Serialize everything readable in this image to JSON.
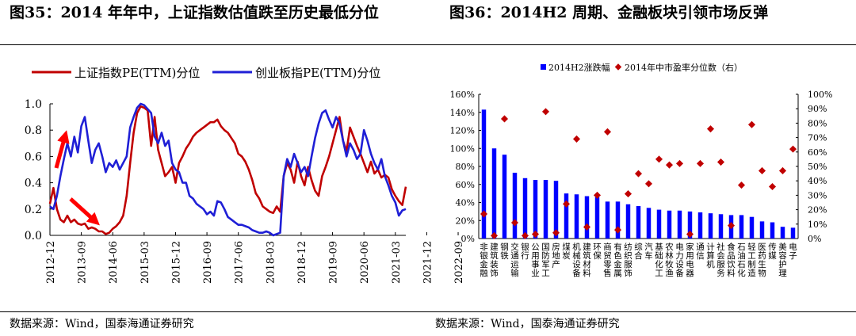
{
  "left_panel": {
    "title": "图35：2014 年年中，上证指数估值跌至历史最低分位",
    "source": "数据来源：Wind，国泰海通证券研究"
  },
  "right_panel": {
    "title": "图36：2014H2 周期、金融板块引领市场反弹",
    "source": "数据来源：Wind，国泰海通证券研究"
  },
  "colors": {
    "sse": "#c00000",
    "chinext": "#1f1fd6",
    "bar": "#0000ff",
    "dot": "#c00000",
    "arrow": "#ff0000"
  },
  "chart_data": [
    {
      "type": "line",
      "title": "",
      "legend_position": "top",
      "x_tick_labels": [
        "2012-12",
        "2013-09",
        "2014-06",
        "2015-03",
        "2015-12",
        "2016-09",
        "2017-06",
        "2018-03",
        "2018-12",
        "2019-09",
        "2020-06",
        "2021-03",
        "2021-12",
        "2022-09"
      ],
      "x_range": [
        "2012-12",
        "2022-11"
      ],
      "y_tick_labels": [
        "0.0",
        "0.2",
        "0.4",
        "0.6",
        "0.8",
        "1.0"
      ],
      "ylim": [
        0,
        1
      ],
      "series": [
        {
          "name": "上证指数PE(TTM)分位",
          "color_key": "sse",
          "points": [
            [
              0,
              0.24
            ],
            [
              1,
              0.36
            ],
            [
              2,
              0.2
            ],
            [
              3,
              0.12
            ],
            [
              4,
              0.1
            ],
            [
              5,
              0.15
            ],
            [
              6,
              0.1
            ],
            [
              7,
              0.12
            ],
            [
              8,
              0.09
            ],
            [
              9,
              0.08
            ],
            [
              10,
              0.09
            ],
            [
              11,
              0.05
            ],
            [
              12,
              0.06
            ],
            [
              13,
              0.05
            ],
            [
              14,
              0.03
            ],
            [
              15,
              0.03
            ],
            [
              16,
              0.01
            ],
            [
              17,
              0.02
            ],
            [
              18,
              0.05
            ],
            [
              19,
              0.07
            ],
            [
              20,
              0.1
            ],
            [
              21,
              0.15
            ],
            [
              22,
              0.3
            ],
            [
              23,
              0.55
            ],
            [
              24,
              0.78
            ],
            [
              25,
              0.93
            ],
            [
              26,
              0.98
            ],
            [
              27,
              0.97
            ],
            [
              28,
              0.95
            ],
            [
              29,
              0.68
            ],
            [
              30,
              0.9
            ],
            [
              31,
              0.65
            ],
            [
              32,
              0.55
            ],
            [
              33,
              0.45
            ],
            [
              34,
              0.48
            ],
            [
              35,
              0.52
            ],
            [
              36,
              0.4
            ],
            [
              37,
              0.55
            ],
            [
              38,
              0.6
            ],
            [
              39,
              0.66
            ],
            [
              40,
              0.7
            ],
            [
              41,
              0.75
            ],
            [
              42,
              0.78
            ],
            [
              43,
              0.8
            ],
            [
              44,
              0.82
            ],
            [
              45,
              0.84
            ],
            [
              46,
              0.86
            ],
            [
              47,
              0.86
            ],
            [
              48,
              0.88
            ],
            [
              49,
              0.83
            ],
            [
              50,
              0.8
            ],
            [
              51,
              0.78
            ],
            [
              52,
              0.74
            ],
            [
              53,
              0.7
            ],
            [
              54,
              0.62
            ],
            [
              55,
              0.6
            ],
            [
              56,
              0.56
            ],
            [
              57,
              0.5
            ],
            [
              58,
              0.42
            ],
            [
              59,
              0.32
            ],
            [
              60,
              0.28
            ],
            [
              61,
              0.22
            ],
            [
              62,
              0.2
            ],
            [
              63,
              0.18
            ],
            [
              64,
              0.17
            ],
            [
              65,
              0.22
            ],
            [
              66,
              0.18
            ],
            [
              67,
              0.45
            ],
            [
              68,
              0.55
            ],
            [
              69,
              0.5
            ],
            [
              70,
              0.4
            ],
            [
              71,
              0.56
            ],
            [
              72,
              0.45
            ],
            [
              73,
              0.38
            ],
            [
              74,
              0.52
            ],
            [
              75,
              0.42
            ],
            [
              76,
              0.34
            ],
            [
              77,
              0.3
            ],
            [
              78,
              0.45
            ],
            [
              79,
              0.52
            ],
            [
              80,
              0.6
            ],
            [
              81,
              0.7
            ],
            [
              82,
              0.8
            ],
            [
              83,
              0.9
            ],
            [
              84,
              0.72
            ],
            [
              85,
              0.64
            ],
            [
              86,
              0.82
            ],
            [
              87,
              0.75
            ],
            [
              88,
              0.68
            ],
            [
              89,
              0.62
            ],
            [
              90,
              0.55
            ],
            [
              91,
              0.48
            ],
            [
              92,
              0.56
            ],
            [
              93,
              0.47
            ],
            [
              94,
              0.5
            ],
            [
              95,
              0.44
            ],
            [
              96,
              0.46
            ],
            [
              97,
              0.44
            ],
            [
              98,
              0.35
            ],
            [
              99,
              0.3
            ],
            [
              100,
              0.26
            ],
            [
              101,
              0.23
            ],
            [
              102,
              0.37
            ]
          ]
        },
        {
          "name": "创业板指PE(TTM)分位",
          "color_key": "chinext",
          "points": [
            [
              0,
              0.22
            ],
            [
              1,
              0.2
            ],
            [
              2,
              0.3
            ],
            [
              3,
              0.45
            ],
            [
              4,
              0.58
            ],
            [
              5,
              0.7
            ],
            [
              6,
              0.6
            ],
            [
              7,
              0.75
            ],
            [
              8,
              0.63
            ],
            [
              9,
              0.83
            ],
            [
              10,
              0.9
            ],
            [
              11,
              0.72
            ],
            [
              12,
              0.55
            ],
            [
              13,
              0.65
            ],
            [
              14,
              0.7
            ],
            [
              15,
              0.6
            ],
            [
              16,
              0.48
            ],
            [
              17,
              0.55
            ],
            [
              18,
              0.52
            ],
            [
              19,
              0.57
            ],
            [
              20,
              0.5
            ],
            [
              21,
              0.55
            ],
            [
              22,
              0.6
            ],
            [
              23,
              0.82
            ],
            [
              24,
              0.9
            ],
            [
              25,
              0.97
            ],
            [
              26,
              1.0
            ],
            [
              27,
              0.99
            ],
            [
              28,
              0.96
            ],
            [
              29,
              0.93
            ],
            [
              30,
              0.75
            ],
            [
              31,
              0.7
            ],
            [
              32,
              0.78
            ],
            [
              33,
              0.68
            ],
            [
              34,
              0.72
            ],
            [
              35,
              0.55
            ],
            [
              36,
              0.5
            ],
            [
              37,
              0.48
            ],
            [
              38,
              0.4
            ],
            [
              39,
              0.4
            ],
            [
              40,
              0.3
            ],
            [
              41,
              0.28
            ],
            [
              42,
              0.24
            ],
            [
              43,
              0.22
            ],
            [
              44,
              0.2
            ],
            [
              45,
              0.16
            ],
            [
              46,
              0.18
            ],
            [
              47,
              0.15
            ],
            [
              48,
              0.26
            ],
            [
              49,
              0.25
            ],
            [
              50,
              0.2
            ],
            [
              51,
              0.14
            ],
            [
              52,
              0.12
            ],
            [
              53,
              0.1
            ],
            [
              54,
              0.08
            ],
            [
              55,
              0.08
            ],
            [
              56,
              0.07
            ],
            [
              57,
              0.06
            ],
            [
              58,
              0.04
            ],
            [
              59,
              0.03
            ],
            [
              60,
              0.02
            ],
            [
              61,
              0.02
            ],
            [
              62,
              0.03
            ],
            [
              63,
              0.02
            ],
            [
              64,
              0.0
            ],
            [
              65,
              0.01
            ],
            [
              66,
              0.02
            ],
            [
              67,
              0.45
            ],
            [
              68,
              0.58
            ],
            [
              69,
              0.52
            ],
            [
              70,
              0.62
            ],
            [
              71,
              0.55
            ],
            [
              72,
              0.48
            ],
            [
              73,
              0.52
            ],
            [
              74,
              0.45
            ],
            [
              75,
              0.6
            ],
            [
              76,
              0.74
            ],
            [
              77,
              0.85
            ],
            [
              78,
              0.93
            ],
            [
              79,
              0.95
            ],
            [
              80,
              0.88
            ],
            [
              81,
              0.82
            ],
            [
              82,
              0.9
            ],
            [
              83,
              0.85
            ],
            [
              84,
              0.72
            ],
            [
              85,
              0.6
            ],
            [
              86,
              0.7
            ],
            [
              87,
              0.65
            ],
            [
              88,
              0.58
            ],
            [
              89,
              0.62
            ],
            [
              90,
              0.8
            ],
            [
              91,
              0.72
            ],
            [
              92,
              0.62
            ],
            [
              93,
              0.55
            ],
            [
              94,
              0.5
            ],
            [
              95,
              0.58
            ],
            [
              96,
              0.45
            ],
            [
              97,
              0.38
            ],
            [
              98,
              0.3
            ],
            [
              99,
              0.25
            ],
            [
              100,
              0.15
            ],
            [
              101,
              0.19
            ],
            [
              102,
              0.2
            ]
          ]
        }
      ]
    },
    {
      "type": "bar",
      "title": "",
      "legend_position": "top",
      "categories": [
        "非银金融",
        "建筑装饰",
        "钢铁",
        "交通运输",
        "银行",
        "公用事业",
        "国防军工",
        "房地产",
        "煤炭",
        "机械设备",
        "建筑材料",
        "环保",
        "商贸零售",
        "有色金属",
        "纺织服饰",
        "综合",
        "汽车",
        "基础化工",
        "农林牧渔",
        "电力设备",
        "家用电器",
        "通信",
        "计算机",
        "社会服务",
        "食品饮料",
        "石油石化",
        "轻工制造",
        "医药生物",
        "传媒",
        "美容护理",
        "电子"
      ],
      "x_tick_labels": [
        "非银金融",
        "建筑装饰",
        "钢铁",
        "交通运输",
        "银行",
        "公用事业",
        "国防军工",
        "房地产",
        "煤炭",
        "机械设备",
        "建筑材料",
        "环保",
        "商贸零售",
        "有色金属",
        "纺织服饰",
        "综合",
        "汽车",
        "基础化工",
        "农林牧渔",
        "电力设备",
        "家用电器",
        "通信",
        "计算机",
        "社会服务",
        "食品饮料",
        "石油石化",
        "轻工制造",
        "医药生物",
        "传媒",
        "美容护理",
        "电子"
      ],
      "series": [
        {
          "name": "2014H2涨跌幅",
          "kind": "bar",
          "axis": "left",
          "values": [
            143,
            100,
            93,
            73,
            67,
            65,
            65,
            64,
            50,
            49,
            47,
            46,
            41,
            41,
            38,
            36,
            34,
            32,
            31,
            31,
            30,
            29,
            28,
            27,
            26,
            26,
            24,
            19,
            18,
            13,
            12
          ]
        },
        {
          "name": "2014年中市盈率分位数（右）",
          "kind": "dot",
          "axis": "right",
          "values": [
            17,
            2,
            83,
            11,
            2,
            3,
            88,
            4,
            24,
            69,
            8,
            30,
            74,
            6,
            31,
            45,
            38,
            55,
            51,
            52,
            3,
            52,
            76,
            53,
            9,
            37,
            79,
            47,
            36,
            47,
            62
          ]
        }
      ],
      "ylabel_left": "",
      "ylabel_right": "",
      "y_left_tick_labels": [
        "0%",
        "20%",
        "40%",
        "60%",
        "80%",
        "100%",
        "120%",
        "140%",
        "160%"
      ],
      "y_right_tick_labels": [
        "0%",
        "10%",
        "20%",
        "30%",
        "40%",
        "50%",
        "60%",
        "70%",
        "80%",
        "90%",
        "100%"
      ],
      "ylim_left": [
        0,
        160
      ],
      "ylim_right": [
        0,
        100
      ]
    }
  ]
}
